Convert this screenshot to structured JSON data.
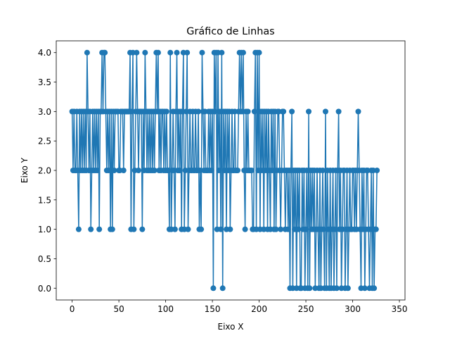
{
  "chart_data": {
    "type": "line",
    "title": "Gráfico de Linhas",
    "xlabel": "Eixo X",
    "ylabel": "Eixo Y",
    "xlim": [
      -17,
      356
    ],
    "ylim": [
      -0.2,
      4.2
    ],
    "xticks": [
      0,
      50,
      100,
      150,
      200,
      250,
      300,
      350
    ],
    "yticks": [
      0.0,
      0.5,
      1.0,
      1.5,
      2.0,
      2.5,
      3.0,
      3.5,
      4.0
    ],
    "xtick_labels": [
      "0",
      "50",
      "100",
      "150",
      "200",
      "250",
      "300",
      "350"
    ],
    "ytick_labels": [
      "0.0",
      "0.5",
      "1.0",
      "1.5",
      "2.0",
      "2.5",
      "3.0",
      "3.5",
      "4.0"
    ],
    "grid": false,
    "marker": "circle",
    "series": [
      {
        "color": "#1f77b4",
        "y": [
          3,
          2,
          3,
          2,
          2,
          3,
          2,
          1,
          3,
          2,
          3,
          2,
          3,
          2,
          3,
          2,
          4,
          3,
          2,
          3,
          1,
          2,
          3,
          2,
          3,
          2,
          3,
          2,
          3,
          1,
          3,
          3,
          4,
          3,
          4,
          4,
          3,
          2,
          3,
          2,
          3,
          1,
          3,
          1,
          3,
          2,
          3,
          3,
          3,
          3,
          2,
          2,
          3,
          3,
          3,
          2,
          3,
          3,
          3,
          3,
          3,
          3,
          4,
          1,
          3,
          4,
          1,
          2,
          3,
          4,
          3,
          2,
          3,
          3,
          3,
          1,
          3,
          2,
          4,
          3,
          2,
          3,
          2,
          3,
          2,
          3,
          2,
          3,
          2,
          3,
          4,
          3,
          4,
          2,
          3,
          2,
          3,
          3,
          2,
          3,
          2,
          3,
          2,
          2,
          1,
          4,
          1,
          2,
          3,
          2,
          1,
          3,
          4,
          2,
          3,
          2,
          3,
          1,
          3,
          4,
          1,
          2,
          3,
          4,
          1,
          2,
          3,
          2,
          2,
          3,
          2,
          2,
          3,
          2,
          2,
          3,
          1,
          2,
          1,
          4,
          3,
          2,
          3,
          2,
          2,
          2,
          3,
          2,
          3,
          2,
          3,
          0,
          4,
          3,
          4,
          1,
          4,
          2,
          3,
          1,
          4,
          0,
          3,
          2,
          3,
          1,
          3,
          2,
          3,
          1,
          2,
          3,
          2,
          2,
          3,
          2,
          2,
          2,
          3,
          4,
          3,
          4,
          3,
          4,
          2,
          1,
          3,
          2,
          3,
          2,
          2,
          2,
          2,
          1,
          1,
          3,
          4,
          1,
          4,
          2,
          4,
          1,
          3,
          2,
          3,
          1,
          3,
          2,
          3,
          1,
          3,
          2,
          1,
          3,
          2,
          3,
          1,
          3,
          1,
          2,
          3,
          3,
          2,
          1,
          2,
          3,
          3,
          2,
          1,
          2,
          2,
          1,
          2,
          0,
          2,
          3,
          0,
          2,
          1,
          2,
          0,
          2,
          1,
          2,
          0,
          0,
          2,
          1,
          2,
          0,
          1,
          2,
          0,
          3,
          0,
          2,
          1,
          2,
          1,
          2,
          0,
          1,
          2,
          1,
          0,
          2,
          0,
          1,
          2,
          1,
          0,
          3,
          0,
          2,
          1,
          0,
          2,
          0,
          1,
          2,
          0,
          1,
          2,
          0,
          2,
          3,
          1,
          2,
          0,
          1,
          2,
          2,
          0,
          1,
          2,
          0,
          1,
          2,
          1,
          1,
          2,
          2,
          1,
          2,
          1,
          2,
          3,
          2,
          1,
          0,
          2,
          1,
          2,
          0,
          1,
          2,
          2,
          1,
          0,
          1,
          2,
          0,
          2,
          0,
          1,
          1,
          2
        ]
      }
    ]
  }
}
